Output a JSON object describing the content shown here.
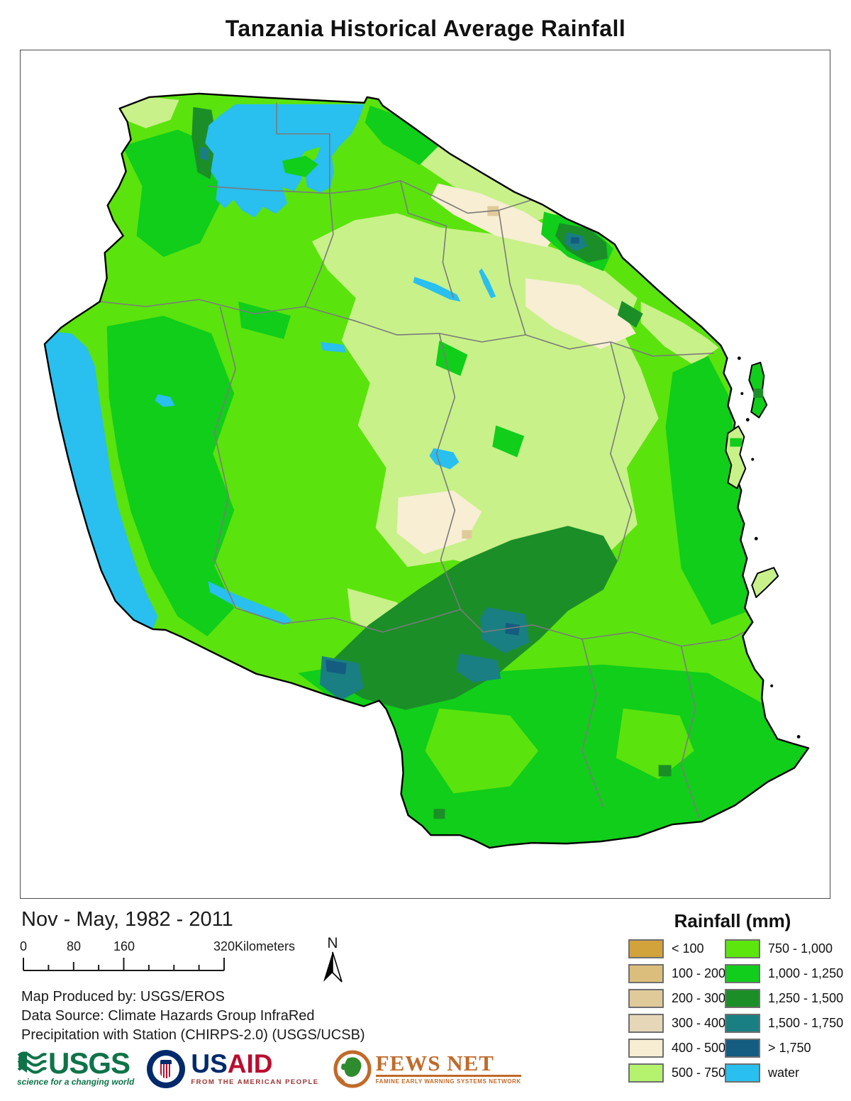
{
  "title": "Tanzania Historical Average Rainfall",
  "subtitle": "Nov - May, 1982 - 2011",
  "legend": {
    "title": "Rainfall (mm)",
    "items_left": [
      {
        "label": "< 100",
        "color": "#D2A23B"
      },
      {
        "label": "100 - 200",
        "color": "#DCBE7C"
      },
      {
        "label": "200 - 300",
        "color": "#E0CA9A"
      },
      {
        "label": "300 - 400",
        "color": "#E6D7B9"
      },
      {
        "label": "400 - 500",
        "color": "#F7EDD2"
      },
      {
        "label": "500 - 750",
        "color": "#B5F26E"
      }
    ],
    "items_right": [
      {
        "label": "750 - 1,000",
        "color": "#5CE60D"
      },
      {
        "label": "1,000 - 1,250",
        "color": "#12CE1C"
      },
      {
        "label": "1,250 - 1,500",
        "color": "#1B8E28"
      },
      {
        "label": "1,500 - 1,750",
        "color": "#1A7F82"
      },
      {
        "label": "> 1,750",
        "color": "#145C80"
      },
      {
        "label": "water",
        "color": "#29BFEF"
      }
    ]
  },
  "scalebar": {
    "tick_labels": [
      "0",
      "80",
      "160"
    ],
    "end_value": "320",
    "unit": "Kilometers"
  },
  "north_label": "N",
  "credits": {
    "line1": "Map Produced by: USGS/EROS",
    "line2": "Data Source: Climate Hazards Group InfraRed",
    "line3": "Precipitation with Station (CHIRPS-2.0) (USGS/UCSB)"
  },
  "logos": {
    "usgs": {
      "name": "USGS",
      "tagline": "science for a changing world",
      "color": "#0F7349"
    },
    "usaid": {
      "name_us": "US",
      "name_aid": "AID",
      "tagline": "FROM THE AMERICAN PEOPLE",
      "blue": "#002A6C",
      "red": "#BA0C2F",
      "tagline_color": "#9B3332"
    },
    "fewsnet": {
      "name": "FEWS NET",
      "tagline": "FAMINE EARLY WARNING SYSTEMS NETWORK",
      "color": "#C06A29"
    }
  },
  "map_colors": {
    "base_750_1000": "#5BE30D",
    "pale_500_750": "#C8F189",
    "cream_400_500": "#F7EED3",
    "tan_200_300": "#E0CA9A",
    "vivid_1000_1250": "#10CE1A",
    "dark_1250_1500": "#1B8E28",
    "teal_1500_1750": "#1A7F82",
    "navy_gt_1750": "#145C80",
    "water": "#29BFEF",
    "admin_line": "#7B7B7B",
    "country_border": "#000000"
  }
}
